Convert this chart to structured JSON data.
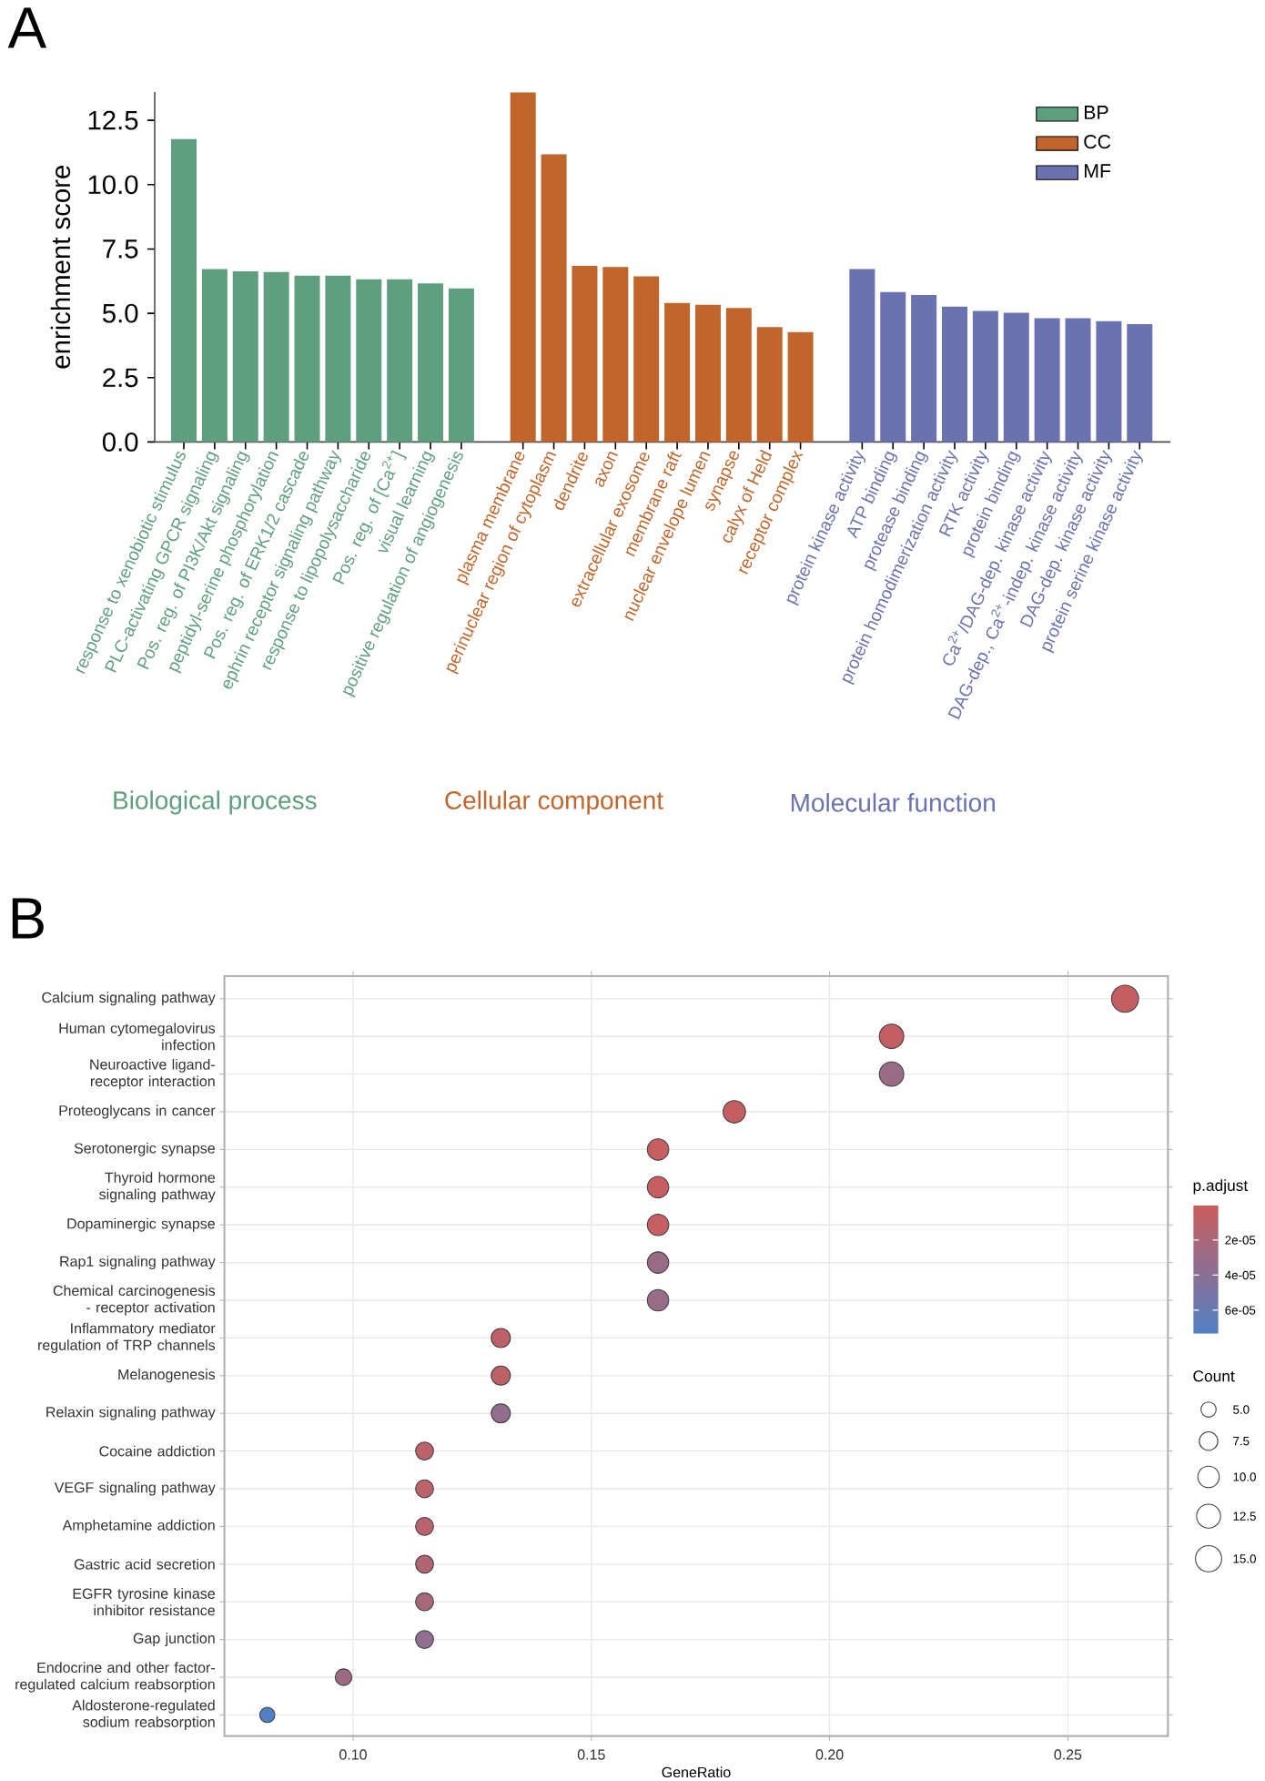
{
  "chart_data": [
    {
      "type": "bar",
      "title": "A",
      "ylabel": "enrichment score",
      "categories": [
        "response to xenobiotic stimulus",
        "PLC-activating GPCR signaling",
        "Pos. reg. of PI3K/Akt signaling",
        "peptidyl-serine phosphorylation",
        "Pos. reg. of ERK1/2 cascade",
        "ephrin receptor signaling pathway",
        "response to lipopolysaccharide",
        "Pos. reg. of [Ca$^{2+}$]",
        "visual learning",
        "positive regulation of angiogenesis",
        null,
        "plasma membrane",
        "perinuclear region of cytoplasm",
        "dendrite",
        "axon",
        "extracellular exosome",
        "membrane raft",
        "nuclear envelope lumen",
        "synapse",
        "calyx of Held",
        "receptor complex",
        null,
        "protein kinase activity",
        "ATP binding",
        "protease binding",
        "protein homodimerization activity",
        "RTK activity",
        "protein binding",
        "Ca$^{2+}$/DAG-dep. kinase activity",
        "DAG-dep., Ca$^{2+}$-indep. kinase activity",
        "DAG-dep. kinase activity",
        "protein serine kinase activity"
      ],
      "series": [
        {
          "name": "BP",
          "color": "#5f9f7f",
          "values": [
            11.77,
            6.72,
            6.63,
            6.6,
            6.46,
            6.46,
            6.32,
            6.32,
            6.16,
            5.97,
            null,
            null,
            null,
            null,
            null,
            null,
            null,
            null,
            null,
            null,
            null,
            null,
            null,
            null,
            null,
            null,
            null,
            null,
            null,
            null,
            null,
            null
          ]
        },
        {
          "name": "CC",
          "color": "#c0652b",
          "values": [
            null,
            null,
            null,
            null,
            null,
            null,
            null,
            null,
            null,
            null,
            null,
            13.58,
            11.18,
            6.84,
            6.8,
            6.44,
            5.4,
            5.33,
            5.21,
            4.46,
            4.27,
            null,
            null,
            null,
            null,
            null,
            null,
            null,
            null,
            null,
            null,
            null
          ]
        },
        {
          "name": "MF",
          "color": "#6b72b0",
          "values": [
            null,
            null,
            null,
            null,
            null,
            null,
            null,
            null,
            null,
            null,
            null,
            null,
            null,
            null,
            null,
            null,
            null,
            null,
            null,
            null,
            null,
            null,
            6.72,
            5.83,
            5.71,
            5.26,
            5.09,
            5.02,
            4.81,
            4.81,
            4.69,
            4.58
          ]
        }
      ],
      "ylim": [
        0,
        13.6
      ],
      "yticks": [
        {
          "value": 0,
          "label": "0.0"
        },
        {
          "value": 2.5,
          "label": "2.5"
        },
        {
          "value": 5,
          "label": "5.0"
        },
        {
          "value": 7.5,
          "label": "7.5"
        },
        {
          "value": 10,
          "label": "10.0"
        },
        {
          "value": 12.5,
          "label": "12.5"
        }
      ],
      "legend": "top right",
      "annotations": [
        "Biological process",
        "Cellular component",
        "Molecular function"
      ]
    },
    {
      "type": "bubble",
      "title": "B",
      "orientation": "horizontal",
      "xlabel": "GeneRatio",
      "categories": [
        "Calcium signaling pathway",
        "Human cytomegalovirus infection",
        "Neuroactive ligand-receptor interaction",
        "Proteoglycans in cancer",
        "Serotonergic synapse",
        "Thyroid hormone signaling pathway",
        "Dopaminergic synapse",
        "Rap1 signaling pathway",
        "Chemical carcinogenesis - receptor activation",
        "Inflammatory mediator regulation of TRP channels",
        "Melanogenesis",
        "Relaxin signaling pathway",
        "Cocaine addiction",
        "VEGF signaling pathway",
        "Amphetamine addiction",
        "Gastric acid secretion",
        "EGFR tyrosine kinase inhibitor resistance",
        "Gap junction",
        "Endocrine and other factor-regulated calcium reabsorption",
        "Aldosterone-regulated sodium reabsorption"
      ],
      "values": [
        0.262,
        0.213,
        0.213,
        0.18,
        0.164,
        0.164,
        0.164,
        0.164,
        0.164,
        0.131,
        0.131,
        0.131,
        0.115,
        0.115,
        0.115,
        0.115,
        0.115,
        0.115,
        0.098,
        0.082
      ],
      "sizes": [
        16,
        13,
        13,
        11,
        10,
        10,
        10,
        10,
        10,
        8,
        8,
        8,
        7,
        7,
        7,
        7,
        7,
        7,
        6,
        5
      ],
      "cvalues": [
        5e-06,
        5e-06,
        3e-05,
        5e-06,
        3e-06,
        3e-06,
        4e-06,
        3e-05,
        3e-05,
        8e-06,
        8e-06,
        3.5e-05,
        1e-05,
        1e-05,
        1.2e-05,
        1.6e-05,
        2.2e-05,
        3.5e-05,
        2.8e-05,
        7.3e-05
      ],
      "clabel": "p.adjust",
      "clim": [
        3e-07,
        7.3e-05
      ],
      "cticks": [
        {
          "value": 2e-05,
          "label": "2e-05"
        },
        {
          "value": 4e-05,
          "label": "4e-05"
        },
        {
          "value": 6e-05,
          "label": "6e-05"
        }
      ],
      "legend_title": "Count",
      "size_legend": [
        {
          "value": 5,
          "label": "5.0"
        },
        {
          "value": 7.5,
          "label": "7.5"
        },
        {
          "value": 10,
          "label": "10.0"
        },
        {
          "value": 12.5,
          "label": "12.5"
        },
        {
          "value": 15,
          "label": "15.0"
        }
      ],
      "xlim": [
        0.073,
        0.271
      ],
      "xticks": [
        {
          "value": 0.1,
          "label": "0.10"
        },
        {
          "value": 0.15,
          "label": "0.15"
        },
        {
          "value": 0.2,
          "label": "0.20"
        },
        {
          "value": 0.25,
          "label": "0.25"
        }
      ],
      "grid": true
    }
  ]
}
